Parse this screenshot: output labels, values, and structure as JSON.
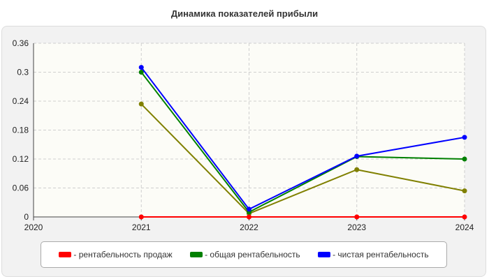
{
  "chart_data": {
    "type": "line",
    "title": "Динамика показателей прибыли",
    "x": [
      "2020",
      "2021",
      "2022",
      "2023",
      "2024"
    ],
    "ylim": [
      0,
      0.36
    ],
    "yticks": [
      "0",
      "0.06",
      "0.12",
      "0.18",
      "0.24",
      "0.3",
      "0.36"
    ],
    "grid": true,
    "legend_position": "bottom",
    "series": [
      {
        "name": "- рентабельность продаж",
        "color": "#ff0000",
        "values": [
          null,
          0.0,
          0.0,
          0.0,
          0.0
        ]
      },
      {
        "name": "- общая рентабельность",
        "color": "#008000",
        "values": [
          null,
          0.3,
          0.01,
          0.125,
          0.12
        ]
      },
      {
        "name": "- чистая рентабельность",
        "color": "#0000ff",
        "values": [
          null,
          0.31,
          0.016,
          0.126,
          0.165
        ]
      },
      {
        "name": "",
        "color": "#808000",
        "values": [
          null,
          0.234,
          0.007,
          0.098,
          0.054
        ]
      }
    ]
  }
}
